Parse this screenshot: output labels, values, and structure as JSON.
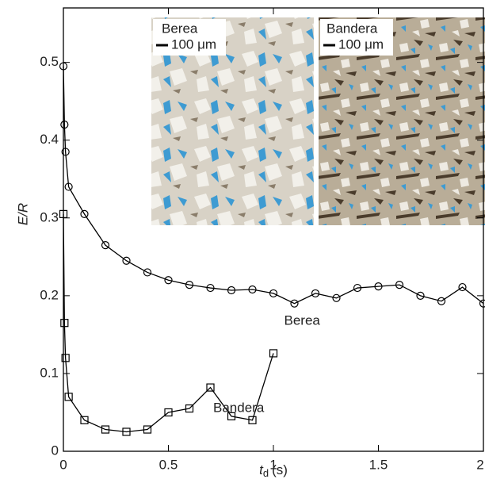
{
  "chart_data": {
    "type": "line",
    "xlabel": {
      "symbol": "t",
      "subscript": "d",
      "unit": "(s)"
    },
    "ylabel": "E/R",
    "xlim": [
      0,
      2
    ],
    "ylim": [
      0,
      0.57
    ],
    "xticks": [
      0,
      0.5,
      1,
      1.5,
      2
    ],
    "yticks": [
      0,
      0.1,
      0.2,
      0.3,
      0.4,
      0.5
    ],
    "series": [
      {
        "name": "Berea",
        "color": "#000000",
        "marker": "circle",
        "x": [
          0,
          0.005,
          0.01,
          0.025,
          0.1,
          0.2,
          0.3,
          0.4,
          0.5,
          0.6,
          0.7,
          0.8,
          0.9,
          1.0,
          1.1,
          1.2,
          1.3,
          1.4,
          1.5,
          1.6,
          1.7,
          1.8,
          1.9,
          2.0
        ],
        "values": [
          0.495,
          0.42,
          0.385,
          0.34,
          0.305,
          0.265,
          0.245,
          0.23,
          0.22,
          0.214,
          0.21,
          0.207,
          0.208,
          0.203,
          0.19,
          0.203,
          0.197,
          0.21,
          0.212,
          0.214,
          0.2,
          0.193,
          0.211,
          0.19
        ]
      },
      {
        "name": "Bandera",
        "color": "#000000",
        "marker": "square",
        "x": [
          0,
          0.005,
          0.01,
          0.025,
          0.1,
          0.2,
          0.3,
          0.4,
          0.5,
          0.6,
          0.7,
          0.8,
          0.9,
          1.0
        ],
        "values": [
          0.305,
          0.165,
          0.12,
          0.07,
          0.04,
          0.028,
          0.025,
          0.028,
          0.05,
          0.055,
          0.082,
          0.045,
          0.04,
          0.126
        ]
      }
    ],
    "insets": [
      {
        "title": "Berea",
        "scale": "100 μm"
      },
      {
        "title": "Bandera",
        "scale": "100 μm"
      }
    ]
  }
}
